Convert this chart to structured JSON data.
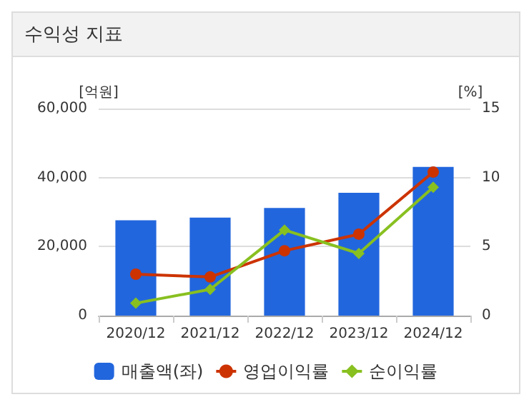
{
  "chart_data": {
    "type": "bar",
    "title": "수익성 지표",
    "ylabel": "[억원]",
    "y2label": "[%]",
    "categories": [
      "2020/12",
      "2021/12",
      "2022/12",
      "2023/12",
      "2024/12"
    ],
    "series": [
      {
        "name": "매출액(좌)",
        "color": "#2266dd",
        "values": [
          27600,
          28400,
          31200,
          35600,
          43100
        ]
      },
      {
        "name": "영업이익률",
        "type": "line",
        "axis": "y2",
        "color": "#cc3300",
        "marker": "circle",
        "values": [
          3.0,
          2.8,
          4.7,
          5.9,
          10.4
        ]
      },
      {
        "name": "순이익률",
        "type": "line",
        "axis": "y2",
        "color": "#88c020",
        "marker": "diamond",
        "values": [
          0.9,
          1.9,
          6.2,
          4.5,
          9.3
        ]
      }
    ],
    "ylim": [
      0,
      60000
    ],
    "yticks": [
      0,
      {
        "value": 20000,
        "label": "20,000"
      },
      {
        "value": 40000,
        "label": "40,000"
      },
      {
        "value": 60000,
        "label": "60,000"
      }
    ],
    "y2lim": [
      0,
      15
    ],
    "y2ticks": [
      0,
      5,
      10,
      15
    ],
    "grid": "y",
    "legend": "bottom"
  }
}
